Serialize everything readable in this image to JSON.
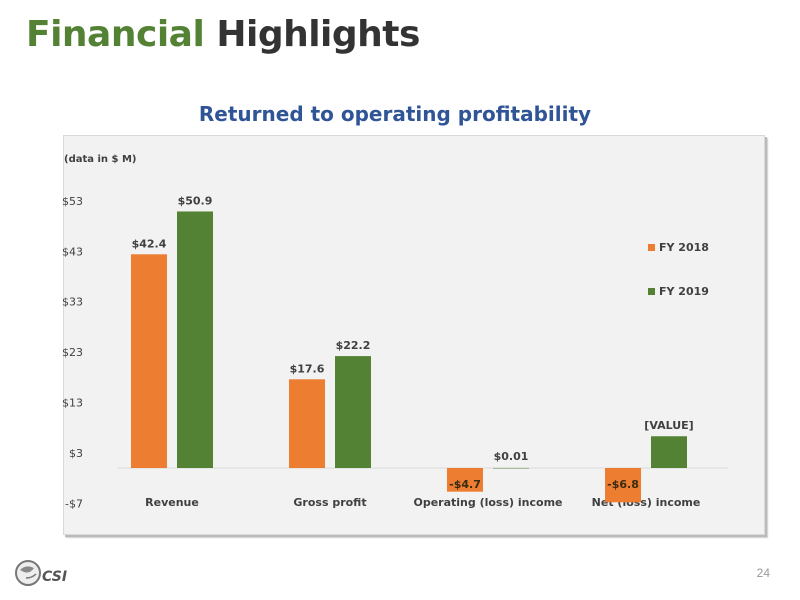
{
  "header": {
    "title_part1": "Financial",
    "title_part2": "Highlights",
    "subtitle": "Returned to operating profitability"
  },
  "logo": {
    "text": "CSI"
  },
  "page_number": "24",
  "chart_data": {
    "type": "bar",
    "title": "Returned to operating profitability",
    "note": "(data in $ M)",
    "categories": [
      "Revenue",
      "Gross profit",
      "Operating (loss) income",
      "Net (loss) income"
    ],
    "series": [
      {
        "name": "FY 2018",
        "color": "#ed7d31",
        "values": [
          42.4,
          17.6,
          -4.7,
          -6.8
        ],
        "labels": [
          "$42.4",
          "$17.6",
          "-$4.7",
          "-$6.8"
        ]
      },
      {
        "name": "FY 2019",
        "color": "#548235",
        "values": [
          50.9,
          22.2,
          0.01,
          6.3
        ],
        "labels": [
          "$50.9",
          "$22.2",
          "$0.01",
          "[VALUE]"
        ]
      }
    ],
    "yticks": [
      53,
      43,
      33,
      23,
      13,
      3,
      -7
    ],
    "ytick_labels": [
      "$53",
      "$43",
      "$33",
      "$23",
      "$13",
      "$3",
      "-$7"
    ],
    "ylim": [
      -7,
      53
    ],
    "legend": "right",
    "grid": false
  }
}
